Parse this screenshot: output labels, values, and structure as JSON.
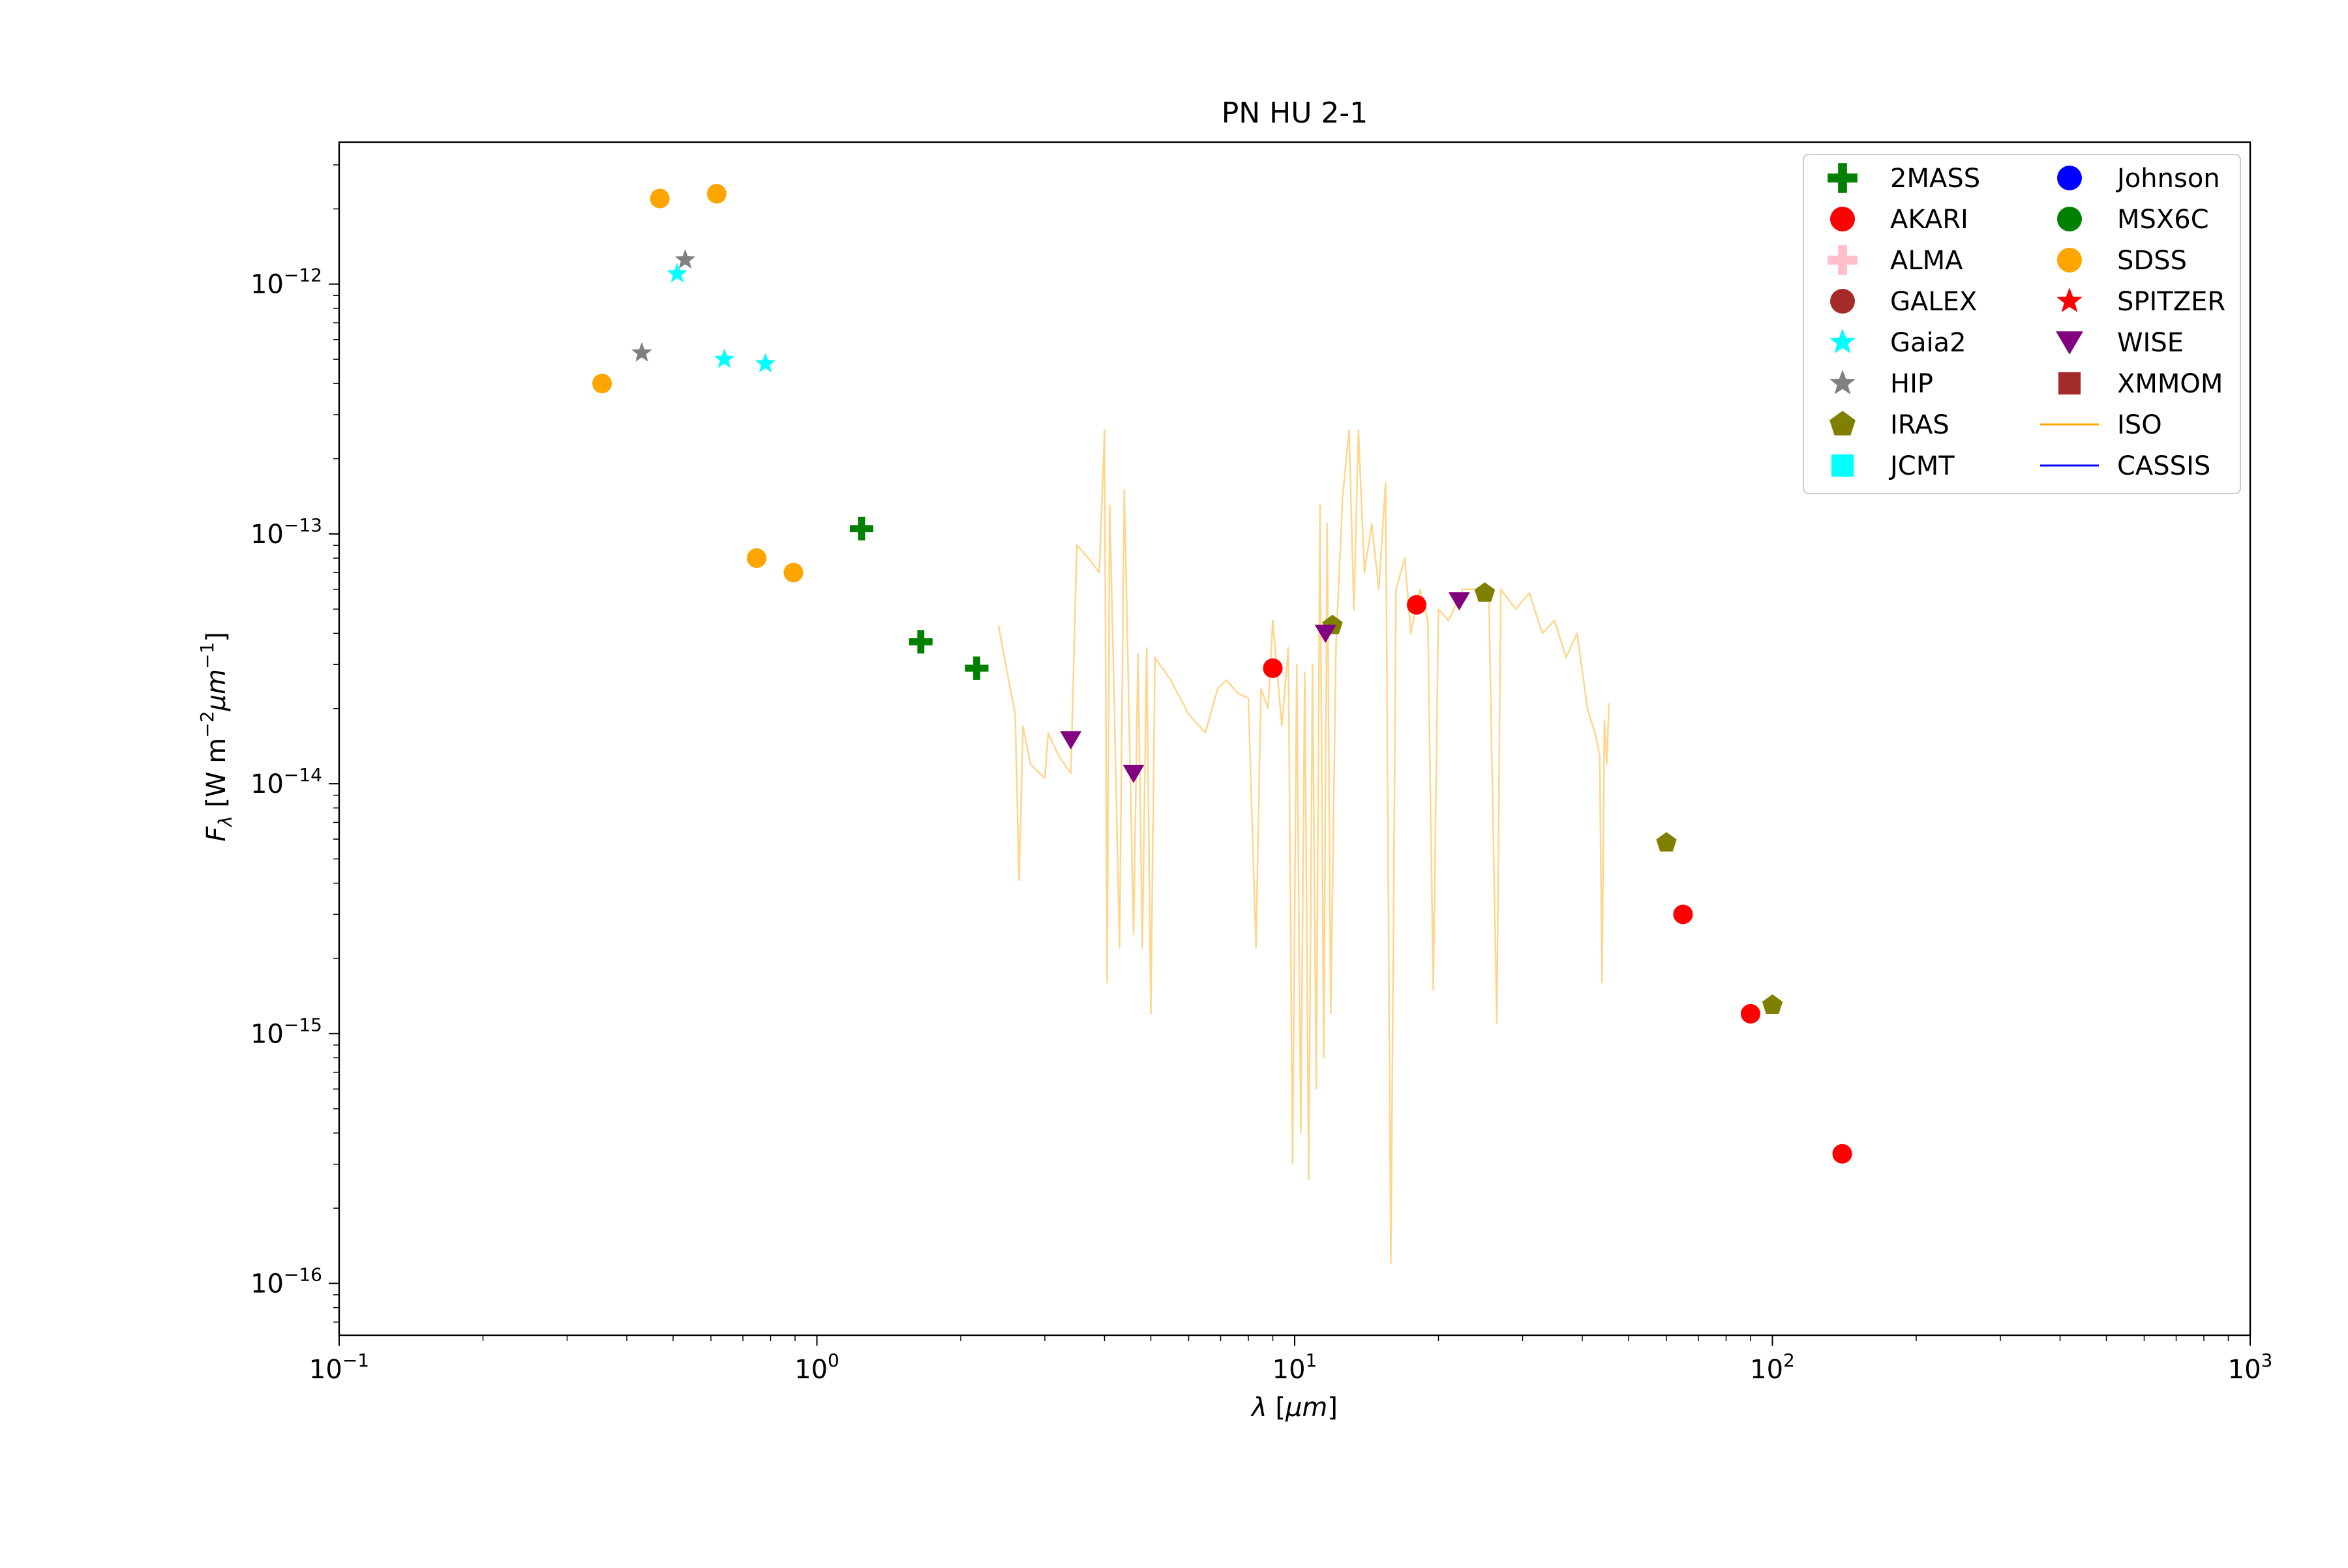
{
  "chart_data": {
    "type": "scatter",
    "title": "PN HU 2-1",
    "xlabel": "λ [μm]",
    "ylabel": "F_λ [W m^-2 μm^-1]",
    "x_scale": "log",
    "y_scale": "log",
    "xlim": [
      0.1,
      1000
    ],
    "ylim": [
      6.2e-17,
      3.7e-12
    ],
    "x_ticks": [
      {
        "value": 0.1,
        "base": "10",
        "exp": "−1"
      },
      {
        "value": 1,
        "base": "10",
        "exp": "0"
      },
      {
        "value": 10,
        "base": "10",
        "exp": "1"
      },
      {
        "value": 100,
        "base": "10",
        "exp": "2"
      },
      {
        "value": 1000,
        "base": "10",
        "exp": "3"
      }
    ],
    "y_ticks": [
      {
        "value": 1e-16,
        "base": "10",
        "exp": "−16"
      },
      {
        "value": 1e-15,
        "base": "10",
        "exp": "−15"
      },
      {
        "value": 1e-14,
        "base": "10",
        "exp": "−14"
      },
      {
        "value": 1e-13,
        "base": "10",
        "exp": "−13"
      },
      {
        "value": 1e-12,
        "base": "10",
        "exp": "−12"
      }
    ],
    "grid": false,
    "legend_position": "top-right",
    "legend_columns": 2,
    "series": [
      {
        "name": "2MASS",
        "marker": "plus",
        "color": "#008000",
        "points": [
          [
            1.24,
            1.05e-13
          ],
          [
            1.65,
            3.7e-14
          ],
          [
            2.16,
            2.9e-14
          ]
        ]
      },
      {
        "name": "AKARI",
        "marker": "circle",
        "color": "#ff0000",
        "points": [
          [
            9.0,
            2.9e-14
          ],
          [
            18.0,
            5.2e-14
          ],
          [
            65,
            3e-15
          ],
          [
            90,
            1.2e-15
          ],
          [
            140,
            3.3e-16
          ]
        ]
      },
      {
        "name": "ALMA",
        "marker": "plus",
        "color": "#ffc0cb",
        "points": []
      },
      {
        "name": "GALEX",
        "marker": "circle",
        "color": "#a52a2a",
        "points": []
      },
      {
        "name": "Gaia2",
        "marker": "star",
        "color": "#00ffff",
        "points": [
          [
            0.51,
            1.1e-12
          ],
          [
            0.64,
            5e-13
          ],
          [
            0.78,
            4.8e-13
          ]
        ]
      },
      {
        "name": "HIP",
        "marker": "star",
        "color": "#808080",
        "points": [
          [
            0.43,
            5.3e-13
          ],
          [
            0.53,
            1.25e-12
          ]
        ]
      },
      {
        "name": "IRAS",
        "marker": "pentagon",
        "color": "#808000",
        "points": [
          [
            12,
            4.3e-14
          ],
          [
            25,
            5.8e-14
          ],
          [
            60,
            5.8e-15
          ],
          [
            100,
            1.3e-15
          ]
        ]
      },
      {
        "name": "JCMT",
        "marker": "square",
        "color": "#00ffff",
        "points": []
      },
      {
        "name": "Johnson",
        "marker": "circle",
        "color": "#0000ff",
        "points": []
      },
      {
        "name": "MSX6C",
        "marker": "circle",
        "color": "#008000",
        "points": []
      },
      {
        "name": "SDSS",
        "marker": "circle",
        "color": "#ffa500",
        "points": [
          [
            0.355,
            4e-13
          ],
          [
            0.469,
            2.2e-12
          ],
          [
            0.617,
            2.3e-12
          ],
          [
            0.748,
            8e-14
          ],
          [
            0.893,
            7e-14
          ]
        ]
      },
      {
        "name": "SPITZER",
        "marker": "star",
        "color": "#ff0000",
        "points": []
      },
      {
        "name": "WISE",
        "marker": "triangle-down",
        "color": "#800080",
        "points": [
          [
            3.4,
            1.5e-14
          ],
          [
            4.6,
            1.1e-14
          ],
          [
            11.6,
            4e-14
          ],
          [
            22.1,
            5.4e-14
          ]
        ]
      },
      {
        "name": "XMMOM",
        "marker": "square",
        "color": "#a52a2a",
        "points": []
      },
      {
        "name": "ISO",
        "marker": "line",
        "color": "#ffa500",
        "alpha": 0.45,
        "points": [
          [
            2.4,
            4.3e-14
          ],
          [
            2.5,
            2.8e-14
          ],
          [
            2.6,
            1.9e-14
          ],
          [
            2.65,
            4.1e-15
          ],
          [
            2.7,
            1.7e-14
          ],
          [
            2.8,
            1.2e-14
          ],
          [
            3.0,
            1.05e-14
          ],
          [
            3.05,
            1.6e-14
          ],
          [
            3.2,
            1.3e-14
          ],
          [
            3.4,
            1.1e-14
          ],
          [
            3.5,
            9e-14
          ],
          [
            3.7,
            8e-14
          ],
          [
            3.9,
            7e-14
          ],
          [
            4.0,
            2.6e-13
          ],
          [
            4.05,
            1.6e-15
          ],
          [
            4.1,
            1.3e-13
          ],
          [
            4.2,
            1.8e-14
          ],
          [
            4.3,
            2.2e-15
          ],
          [
            4.4,
            1.5e-13
          ],
          [
            4.5,
            1.9e-14
          ],
          [
            4.6,
            2.5e-15
          ],
          [
            4.7,
            3.3e-14
          ],
          [
            4.8,
            2.2e-15
          ],
          [
            4.9,
            3.5e-14
          ],
          [
            5.0,
            1.2e-15
          ],
          [
            5.1,
            3.2e-14
          ],
          [
            5.5,
            2.6e-14
          ],
          [
            6.0,
            1.9e-14
          ],
          [
            6.5,
            1.6e-14
          ],
          [
            6.9,
            2.4e-14
          ],
          [
            7.2,
            2.6e-14
          ],
          [
            7.6,
            2.3e-14
          ],
          [
            8.0,
            2.2e-14
          ],
          [
            8.3,
            2.2e-15
          ],
          [
            8.5,
            2.4e-14
          ],
          [
            8.8,
            2e-14
          ],
          [
            9.0,
            4.5e-14
          ],
          [
            9.4,
            1.7e-14
          ],
          [
            9.7,
            3.5e-14
          ],
          [
            9.9,
            3e-16
          ],
          [
            10.1,
            3e-14
          ],
          [
            10.3,
            4e-16
          ],
          [
            10.5,
            2.8e-14
          ],
          [
            10.7,
            2.6e-16
          ],
          [
            10.9,
            3e-14
          ],
          [
            11.1,
            6e-16
          ],
          [
            11.3,
            1.3e-13
          ],
          [
            11.5,
            8e-16
          ],
          [
            11.7,
            1.1e-13
          ],
          [
            11.9,
            1.2e-15
          ],
          [
            12.2,
            3.5e-14
          ],
          [
            12.6,
            1.4e-13
          ],
          [
            13.0,
            2.6e-13
          ],
          [
            13.3,
            5e-14
          ],
          [
            13.6,
            2.6e-13
          ],
          [
            14.0,
            7e-14
          ],
          [
            14.5,
            1.1e-13
          ],
          [
            15.0,
            6e-14
          ],
          [
            15.5,
            1.6e-13
          ],
          [
            15.9,
            1.2e-16
          ],
          [
            16.3,
            6e-14
          ],
          [
            17.0,
            8e-14
          ],
          [
            17.5,
            4e-14
          ],
          [
            18.3,
            6e-14
          ],
          [
            19.0,
            4.5e-14
          ],
          [
            19.5,
            1.5e-15
          ],
          [
            20.0,
            5e-14
          ],
          [
            21.0,
            4.5e-14
          ],
          [
            22.5,
            6e-14
          ],
          [
            24.0,
            6e-14
          ],
          [
            25.5,
            5.5e-14
          ],
          [
            26.5,
            1.1e-15
          ],
          [
            27.0,
            6e-14
          ],
          [
            29.0,
            5e-14
          ],
          [
            31.0,
            5.8e-14
          ],
          [
            33.0,
            4e-14
          ],
          [
            35.0,
            4.5e-14
          ],
          [
            37.0,
            3.2e-14
          ],
          [
            39.0,
            4e-14
          ],
          [
            41.0,
            2e-14
          ],
          [
            42.5,
            1.6e-14
          ],
          [
            43.5,
            1.3e-14
          ],
          [
            44.0,
            1.6e-15
          ],
          [
            44.5,
            1.8e-14
          ],
          [
            45.0,
            1.2e-14
          ],
          [
            45.5,
            2.1e-14
          ]
        ]
      },
      {
        "name": "CASSIS",
        "marker": "line",
        "color": "#0000ff",
        "points": []
      }
    ]
  }
}
